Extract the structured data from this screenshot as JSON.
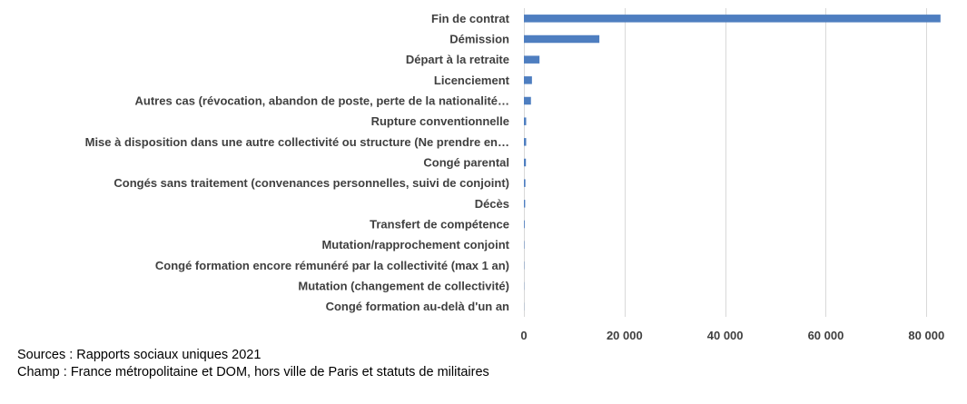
{
  "colors": {
    "bar": "#4e7ec0",
    "grid": "#d9d9d9",
    "text": "#404040"
  },
  "chart_data": {
    "type": "bar",
    "orientation": "horizontal",
    "categories": [
      "Fin de contrat",
      "Démission",
      "Départ à la retraite",
      "Licenciement",
      "Autres cas (révocation, abandon de poste, perte de la nationalité…",
      "Rupture conventionnelle",
      "Mise à disposition dans une autre collectivité ou structure (Ne prendre en…",
      "Congé parental",
      "Congés sans traitement (convenances personnelles, suivi de conjoint)",
      "Décès",
      "Transfert de compétence",
      "Mutation/rapprochement conjoint",
      "Congé formation encore rémunéré par la collectivité (max 1 an)",
      "Mutation (changement de collectivité)",
      "Congé formation au-delà d'un an"
    ],
    "values": [
      82800,
      15000,
      3100,
      1600,
      1400,
      450,
      450,
      400,
      300,
      250,
      150,
      80,
      60,
      40,
      30
    ],
    "xlim": [
      0,
      85000
    ],
    "ticks": [
      0,
      20000,
      40000,
      60000,
      80000
    ],
    "tick_labels": [
      "0",
      "20 000",
      "40 000",
      "60 000",
      "80 000"
    ],
    "grid": "vertical",
    "title": "",
    "xlabel": "",
    "ylabel": ""
  },
  "notes": {
    "sources": "Sources : Rapports sociaux uniques 2021",
    "champ": "Champ : France métropolitaine et DOM, hors ville de Paris et statuts de militaires"
  }
}
